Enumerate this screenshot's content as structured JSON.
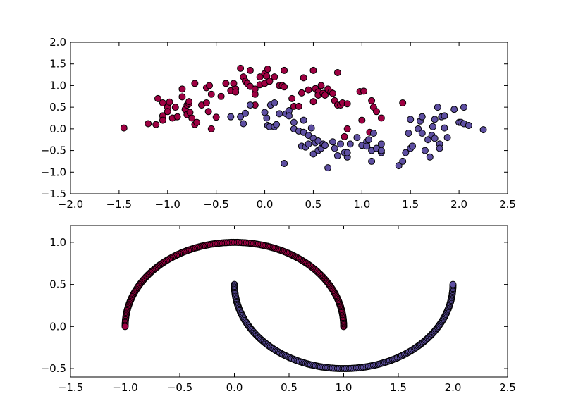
{
  "chart_data": [
    {
      "type": "scatter",
      "title": "",
      "xlabel": "",
      "ylabel": "",
      "xlim": [
        -2.0,
        2.5
      ],
      "ylim": [
        -1.5,
        2.0
      ],
      "x_ticks": [
        "−2.0",
        "−1.5",
        "−1.0",
        "−0.5",
        "0.0",
        "0.5",
        "1.0",
        "1.5",
        "2.0",
        "2.5"
      ],
      "x_tick_values": [
        -2.0,
        -1.5,
        -1.0,
        -0.5,
        0.0,
        0.5,
        1.0,
        1.5,
        2.0,
        2.5
      ],
      "y_ticks": [
        "−1.5",
        "−1.0",
        "−0.5",
        "0.0",
        "0.5",
        "1.0",
        "1.5",
        "2.0"
      ],
      "y_tick_values": [
        -1.5,
        -1.0,
        -0.5,
        0.0,
        0.5,
        1.0,
        1.5,
        2.0
      ],
      "grid": false,
      "series": [
        {
          "color": "#9e0142",
          "points": [
            [
              -1.45,
              0.02
            ],
            [
              -1.2,
              0.12
            ],
            [
              -1.12,
              0.1
            ],
            [
              -1.1,
              0.7
            ],
            [
              -1.05,
              0.6
            ],
            [
              -1.05,
              0.3
            ],
            [
              -1.05,
              0.2
            ],
            [
              -1.0,
              0.5
            ],
            [
              -1.0,
              0.4
            ],
            [
              -0.98,
              0.62
            ],
            [
              -0.95,
              0.25
            ],
            [
              -0.92,
              0.5
            ],
            [
              -0.9,
              0.28
            ],
            [
              -0.85,
              0.74
            ],
            [
              -0.85,
              0.92
            ],
            [
              -0.82,
              0.45
            ],
            [
              -0.8,
              0.33
            ],
            [
              -0.8,
              0.55
            ],
            [
              -0.78,
              0.58
            ],
            [
              -0.78,
              0.63
            ],
            [
              -0.77,
              0.38
            ],
            [
              -0.75,
              0.25
            ],
            [
              -0.72,
              1.05
            ],
            [
              -0.72,
              0.1
            ],
            [
              -0.7,
              0.15
            ],
            [
              -0.65,
              0.55
            ],
            [
              -0.6,
              0.95
            ],
            [
              -0.6,
              0.6
            ],
            [
              -0.58,
              0.4
            ],
            [
              -0.57,
              1.0
            ],
            [
              -0.55,
              0.8
            ],
            [
              -0.55,
              0.0
            ],
            [
              -0.5,
              0.27
            ],
            [
              -0.45,
              0.75
            ],
            [
              -0.4,
              1.05
            ],
            [
              -0.35,
              0.88
            ],
            [
              -0.32,
              1.05
            ],
            [
              -0.3,
              0.92
            ],
            [
              -0.3,
              0.85
            ],
            [
              -0.25,
              1.4
            ],
            [
              -0.22,
              1.2
            ],
            [
              -0.2,
              1.1
            ],
            [
              -0.18,
              1.05
            ],
            [
              -0.15,
              0.98
            ],
            [
              -0.15,
              1.35
            ],
            [
              -0.1,
              0.8
            ],
            [
              -0.1,
              0.55
            ],
            [
              -0.1,
              0.92
            ],
            [
              -0.05,
              1.2
            ],
            [
              -0.05,
              1.02
            ],
            [
              0.0,
              1.05
            ],
            [
              0.0,
              1.28
            ],
            [
              0.02,
              1.22
            ],
            [
              0.03,
              1.38
            ],
            [
              0.05,
              1.1
            ],
            [
              0.1,
              1.2
            ],
            [
              0.15,
              1.0
            ],
            [
              0.18,
              1.0
            ],
            [
              0.2,
              1.35
            ],
            [
              0.2,
              0.97
            ],
            [
              0.28,
              0.7
            ],
            [
              0.3,
              0.52
            ],
            [
              0.35,
              0.52
            ],
            [
              0.38,
              0.83
            ],
            [
              0.4,
              1.18
            ],
            [
              0.45,
              0.9
            ],
            [
              0.5,
              0.63
            ],
            [
              0.5,
              1.35
            ],
            [
              0.52,
              0.93
            ],
            [
              0.55,
              0.85
            ],
            [
              0.55,
              0.78
            ],
            [
              0.58,
              1.0
            ],
            [
              0.6,
              0.82
            ],
            [
              0.62,
              0.78
            ],
            [
              0.65,
              0.92
            ],
            [
              0.68,
              0.85
            ],
            [
              0.7,
              0.82
            ],
            [
              0.72,
              0.65
            ],
            [
              0.75,
              1.3
            ],
            [
              0.75,
              0.55
            ],
            [
              0.78,
              0.55
            ],
            [
              0.8,
              0.6
            ],
            [
              0.82,
              -0.18
            ],
            [
              0.85,
              0.58
            ],
            [
              0.85,
              0.0
            ],
            [
              0.98,
              0.86
            ],
            [
              1.0,
              0.2
            ],
            [
              1.02,
              0.87
            ],
            [
              1.08,
              -0.08
            ],
            [
              1.1,
              0.65
            ],
            [
              1.12,
              0.5
            ],
            [
              1.15,
              0.4
            ],
            [
              1.2,
              0.25
            ],
            [
              1.42,
              0.6
            ]
          ]
        },
        {
          "color": "#5e4fa2",
          "points": [
            [
              -0.35,
              0.28
            ],
            [
              -0.25,
              0.28
            ],
            [
              -0.22,
              0.12
            ],
            [
              -0.2,
              0.36
            ],
            [
              -0.15,
              0.55
            ],
            [
              0.0,
              0.38
            ],
            [
              0.02,
              0.25
            ],
            [
              0.03,
              0.08
            ],
            [
              0.05,
              0.05
            ],
            [
              0.06,
              0.55
            ],
            [
              0.1,
              0.6
            ],
            [
              0.1,
              0.05
            ],
            [
              0.12,
              0.1
            ],
            [
              0.15,
              0.35
            ],
            [
              0.2,
              -0.8
            ],
            [
              0.22,
              0.35
            ],
            [
              0.25,
              0.42
            ],
            [
              0.25,
              0.3
            ],
            [
              0.3,
              0.15
            ],
            [
              0.3,
              0.0
            ],
            [
              0.35,
              -0.05
            ],
            [
              0.38,
              -0.4
            ],
            [
              0.4,
              -0.08
            ],
            [
              0.4,
              0.2
            ],
            [
              0.42,
              -0.42
            ],
            [
              0.45,
              -0.35
            ],
            [
              0.45,
              -0.15
            ],
            [
              0.48,
              0.02
            ],
            [
              0.5,
              -0.58
            ],
            [
              0.5,
              -0.22
            ],
            [
              0.52,
              -0.32
            ],
            [
              0.55,
              -0.5
            ],
            [
              0.55,
              -0.28
            ],
            [
              0.58,
              -0.45
            ],
            [
              0.6,
              -0.35
            ],
            [
              0.62,
              -0.38
            ],
            [
              0.65,
              -0.9
            ],
            [
              0.7,
              -0.3
            ],
            [
              0.72,
              -0.45
            ],
            [
              0.75,
              -0.62
            ],
            [
              0.78,
              -0.35
            ],
            [
              0.82,
              -0.55
            ],
            [
              0.85,
              -0.65
            ],
            [
              0.85,
              -0.55
            ],
            [
              0.88,
              -0.35
            ],
            [
              0.95,
              -0.2
            ],
            [
              1.0,
              -0.38
            ],
            [
              1.05,
              -0.3
            ],
            [
              1.05,
              -0.4
            ],
            [
              1.07,
              -0.25
            ],
            [
              1.1,
              -0.5
            ],
            [
              1.1,
              -0.75
            ],
            [
              1.12,
              -0.1
            ],
            [
              1.15,
              -0.45
            ],
            [
              1.2,
              -0.55
            ],
            [
              1.2,
              -0.35
            ],
            [
              1.2,
              -0.5
            ],
            [
              1.38,
              -0.85
            ],
            [
              1.42,
              -0.75
            ],
            [
              1.45,
              -0.55
            ],
            [
              1.48,
              -0.1
            ],
            [
              1.5,
              0.22
            ],
            [
              1.5,
              -0.45
            ],
            [
              1.52,
              -0.4
            ],
            [
              1.58,
              0.0
            ],
            [
              1.6,
              0.18
            ],
            [
              1.62,
              -0.1
            ],
            [
              1.62,
              0.28
            ],
            [
              1.65,
              -0.5
            ],
            [
              1.68,
              -0.25
            ],
            [
              1.7,
              -0.65
            ],
            [
              1.72,
              -0.15
            ],
            [
              1.73,
              0.05
            ],
            [
              1.75,
              0.22
            ],
            [
              1.75,
              -0.22
            ],
            [
              1.78,
              0.5
            ],
            [
              1.8,
              -0.35
            ],
            [
              1.8,
              -0.45
            ],
            [
              1.82,
              0.28
            ],
            [
              1.85,
              0.02
            ],
            [
              1.85,
              0.3
            ],
            [
              1.88,
              -0.2
            ],
            [
              1.95,
              0.45
            ],
            [
              2.0,
              0.15
            ],
            [
              2.02,
              0.15
            ],
            [
              2.05,
              0.5
            ],
            [
              2.05,
              0.12
            ],
            [
              2.1,
              0.08
            ],
            [
              2.25,
              -0.02
            ]
          ]
        }
      ]
    },
    {
      "type": "scatter",
      "title": "",
      "xlabel": "",
      "ylabel": "",
      "xlim": [
        -1.5,
        2.5
      ],
      "ylim": [
        -0.6,
        1.2
      ],
      "x_ticks": [
        "−1.5",
        "−1.0",
        "−0.5",
        "0.0",
        "0.5",
        "1.0",
        "1.5",
        "2.0",
        "2.5"
      ],
      "x_tick_values": [
        -1.5,
        -1.0,
        -0.5,
        0.0,
        0.5,
        1.0,
        1.5,
        2.0,
        2.5
      ],
      "y_ticks": [
        "−0.5",
        "0.0",
        "0.5",
        "1.0"
      ],
      "y_tick_values": [
        -0.5,
        0.0,
        0.5,
        1.0
      ],
      "grid": false,
      "series": [
        {
          "shape": "upper-moon",
          "color": "#9e0142",
          "center": [
            0.0,
            0.0
          ],
          "radius": 1.0,
          "angle_range_deg": [
            0,
            180
          ],
          "n_points": 200
        },
        {
          "shape": "lower-moon",
          "color": "#5e4fa2",
          "center": [
            1.0,
            0.5
          ],
          "radius": 1.0,
          "angle_range_deg": [
            180,
            360
          ],
          "n_points": 200
        }
      ]
    }
  ]
}
